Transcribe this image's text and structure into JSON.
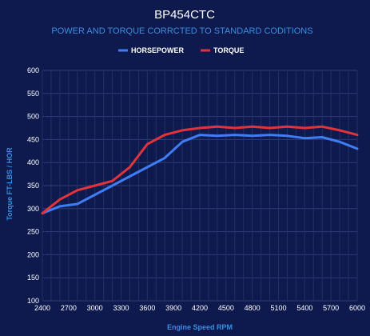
{
  "chart_data": {
    "type": "line",
    "title": "BP454CTC",
    "subtitle": "POWER AND TORQUE CORRCTED TO STANDARD CODITIONS",
    "xlabel": "Engine Speed RPM",
    "ylabel": "Torque FT-LBS / HOR",
    "xlim": [
      2400,
      6000
    ],
    "ylim": [
      100,
      600
    ],
    "x_ticks": [
      2400,
      2700,
      3000,
      3300,
      3600,
      3900,
      4200,
      4500,
      4800,
      5100,
      5400,
      5700,
      6000
    ],
    "y_ticks": [
      100,
      150,
      200,
      250,
      300,
      350,
      400,
      450,
      500,
      550,
      600
    ],
    "grid": true,
    "legend": "top-center",
    "series": [
      {
        "name": "HORSEPOWER",
        "color": "#3f7df5",
        "x": [
          2400,
          2600,
          2800,
          3000,
          3200,
          3400,
          3600,
          3800,
          4000,
          4200,
          4400,
          4600,
          4800,
          5000,
          5200,
          5400,
          5600,
          5800,
          6000
        ],
        "values": [
          290,
          305,
          310,
          330,
          350,
          370,
          390,
          410,
          445,
          460,
          458,
          460,
          458,
          460,
          458,
          453,
          455,
          445,
          430
        ]
      },
      {
        "name": "TORQUE",
        "color": "#e0343a",
        "x": [
          2400,
          2600,
          2800,
          3000,
          3200,
          3400,
          3600,
          3800,
          4000,
          4200,
          4400,
          4600,
          4800,
          5000,
          5200,
          5400,
          5600,
          5800,
          6000
        ],
        "values": [
          290,
          320,
          340,
          350,
          360,
          390,
          440,
          460,
          470,
          475,
          478,
          475,
          478,
          475,
          478,
          475,
          478,
          470,
          460
        ]
      }
    ]
  }
}
